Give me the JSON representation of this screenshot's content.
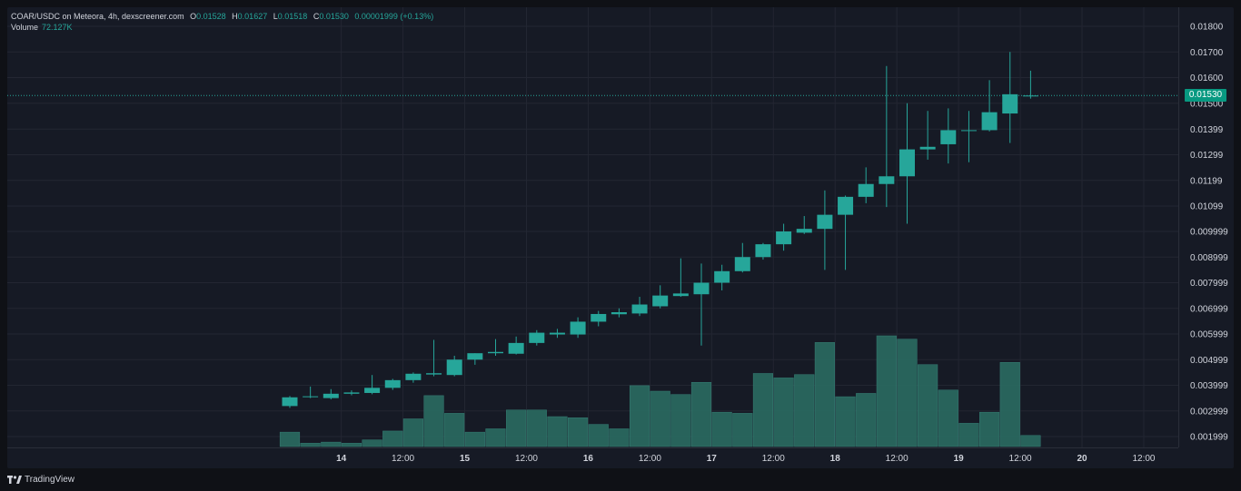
{
  "header": {
    "symbol": "COAR/USDC on Meteora, 4h, dexscreener.com",
    "o_label": "O",
    "o_value": "0.01528",
    "h_label": "H",
    "h_value": "0.01627",
    "l_label": "L",
    "l_value": "0.01518",
    "c_label": "C",
    "c_value": "0.01530",
    "change": "0.00001999 (+0.13%)",
    "volume_label": "Volume",
    "volume_value": "72.127K"
  },
  "last_price_label": "0.01530",
  "footer": {
    "brand": "TradingView"
  },
  "colors": {
    "up": "#26a69a",
    "volume": "#2a6b61",
    "background": "#161a25",
    "grid": "#232632",
    "price_tag": "#089981"
  },
  "chart_data": {
    "type": "candlestick",
    "interval": "4h",
    "y_ticks": [
      "0.01800",
      "0.01700",
      "0.01600",
      "0.01500",
      "0.01399",
      "0.01299",
      "0.01199",
      "0.01099",
      "0.009999",
      "0.008999",
      "0.007999",
      "0.006999",
      "0.005999",
      "0.004999",
      "0.003999",
      "0.002999",
      "0.001999"
    ],
    "x_ticks": [
      {
        "label": "14",
        "bar": 2.5,
        "day": true
      },
      {
        "label": "12:00",
        "bar": 5.5,
        "day": false
      },
      {
        "label": "15",
        "bar": 8.5,
        "day": true
      },
      {
        "label": "12:00",
        "bar": 11.5,
        "day": false
      },
      {
        "label": "16",
        "bar": 14.5,
        "day": true
      },
      {
        "label": "12:00",
        "bar": 17.5,
        "day": false
      },
      {
        "label": "17",
        "bar": 20.5,
        "day": true
      },
      {
        "label": "12:00",
        "bar": 23.5,
        "day": false
      },
      {
        "label": "18",
        "bar": 26.5,
        "day": true
      },
      {
        "label": "12:00",
        "bar": 29.5,
        "day": false
      },
      {
        "label": "19",
        "bar": 32.5,
        "day": true
      },
      {
        "label": "12:00",
        "bar": 35.5,
        "day": false
      },
      {
        "label": "20",
        "bar": 38.5,
        "day": true
      },
      {
        "label": "12:00",
        "bar": 41.5,
        "day": false
      }
    ],
    "last_price": 0.0153,
    "volume_max": 1.0,
    "candles": [
      {
        "o": 0.00319,
        "h": 0.00358,
        "l": 0.00312,
        "c": 0.00353,
        "v": 0.13
      },
      {
        "o": 0.00355,
        "h": 0.00395,
        "l": 0.0035,
        "c": 0.00357,
        "v": 0.03
      },
      {
        "o": 0.0035,
        "h": 0.00385,
        "l": 0.00345,
        "c": 0.00367,
        "v": 0.04
      },
      {
        "o": 0.00367,
        "h": 0.0038,
        "l": 0.00361,
        "c": 0.00372,
        "v": 0.03
      },
      {
        "o": 0.0037,
        "h": 0.0044,
        "l": 0.00365,
        "c": 0.0039,
        "v": 0.06
      },
      {
        "o": 0.0039,
        "h": 0.00425,
        "l": 0.00382,
        "c": 0.0042,
        "v": 0.14
      },
      {
        "o": 0.0042,
        "h": 0.0045,
        "l": 0.0041,
        "c": 0.00445,
        "v": 0.25
      },
      {
        "o": 0.00442,
        "h": 0.00577,
        "l": 0.00435,
        "c": 0.00447,
        "v": 0.46
      },
      {
        "o": 0.0044,
        "h": 0.00515,
        "l": 0.00435,
        "c": 0.005,
        "v": 0.3
      },
      {
        "o": 0.005,
        "h": 0.00525,
        "l": 0.0048,
        "c": 0.00525,
        "v": 0.13
      },
      {
        "o": 0.00525,
        "h": 0.0058,
        "l": 0.00515,
        "c": 0.0053,
        "v": 0.16
      },
      {
        "o": 0.00523,
        "h": 0.0059,
        "l": 0.0052,
        "c": 0.00565,
        "v": 0.33
      },
      {
        "o": 0.00565,
        "h": 0.00615,
        "l": 0.00555,
        "c": 0.00605,
        "v": 0.33
      },
      {
        "o": 0.00598,
        "h": 0.0062,
        "l": 0.00585,
        "c": 0.00605,
        "v": 0.27
      },
      {
        "o": 0.00598,
        "h": 0.00665,
        "l": 0.00585,
        "c": 0.00648,
        "v": 0.26
      },
      {
        "o": 0.00648,
        "h": 0.0069,
        "l": 0.0063,
        "c": 0.00678,
        "v": 0.2
      },
      {
        "o": 0.00677,
        "h": 0.007,
        "l": 0.00665,
        "c": 0.00685,
        "v": 0.16
      },
      {
        "o": 0.0068,
        "h": 0.00745,
        "l": 0.0067,
        "c": 0.00715,
        "v": 0.55
      },
      {
        "o": 0.00708,
        "h": 0.0079,
        "l": 0.007,
        "c": 0.0075,
        "v": 0.5
      },
      {
        "o": 0.00748,
        "h": 0.00895,
        "l": 0.00745,
        "c": 0.00758,
        "v": 0.47
      },
      {
        "o": 0.00755,
        "h": 0.00875,
        "l": 0.00555,
        "c": 0.008,
        "v": 0.58
      },
      {
        "o": 0.008,
        "h": 0.0087,
        "l": 0.0077,
        "c": 0.00845,
        "v": 0.31
      },
      {
        "o": 0.00845,
        "h": 0.00955,
        "l": 0.0084,
        "c": 0.009,
        "v": 0.3
      },
      {
        "o": 0.009,
        "h": 0.00955,
        "l": 0.0089,
        "c": 0.0095,
        "v": 0.66
      },
      {
        "o": 0.0095,
        "h": 0.0103,
        "l": 0.00925,
        "c": 0.01,
        "v": 0.62
      },
      {
        "o": 0.00995,
        "h": 0.0106,
        "l": 0.0099,
        "c": 0.0101,
        "v": 0.65
      },
      {
        "o": 0.0101,
        "h": 0.0116,
        "l": 0.0085,
        "c": 0.01065,
        "v": 0.94
      },
      {
        "o": 0.01065,
        "h": 0.0114,
        "l": 0.0085,
        "c": 0.01135,
        "v": 0.45
      },
      {
        "o": 0.01135,
        "h": 0.0125,
        "l": 0.0111,
        "c": 0.01185,
        "v": 0.48
      },
      {
        "o": 0.01185,
        "h": 0.01645,
        "l": 0.01095,
        "c": 0.01215,
        "v": 1.0
      },
      {
        "o": 0.01215,
        "h": 0.015,
        "l": 0.0103,
        "c": 0.0132,
        "v": 0.97
      },
      {
        "o": 0.0132,
        "h": 0.0147,
        "l": 0.0128,
        "c": 0.0133,
        "v": 0.74
      },
      {
        "o": 0.0134,
        "h": 0.0148,
        "l": 0.01265,
        "c": 0.01395,
        "v": 0.51
      },
      {
        "o": 0.01395,
        "h": 0.0147,
        "l": 0.0127,
        "c": 0.01395,
        "v": 0.21
      },
      {
        "o": 0.01395,
        "h": 0.0159,
        "l": 0.0139,
        "c": 0.01465,
        "v": 0.31
      },
      {
        "o": 0.0146,
        "h": 0.017,
        "l": 0.01345,
        "c": 0.01535,
        "v": 0.76
      },
      {
        "o": 0.01528,
        "h": 0.01627,
        "l": 0.01518,
        "c": 0.0153,
        "v": 0.1
      }
    ]
  }
}
